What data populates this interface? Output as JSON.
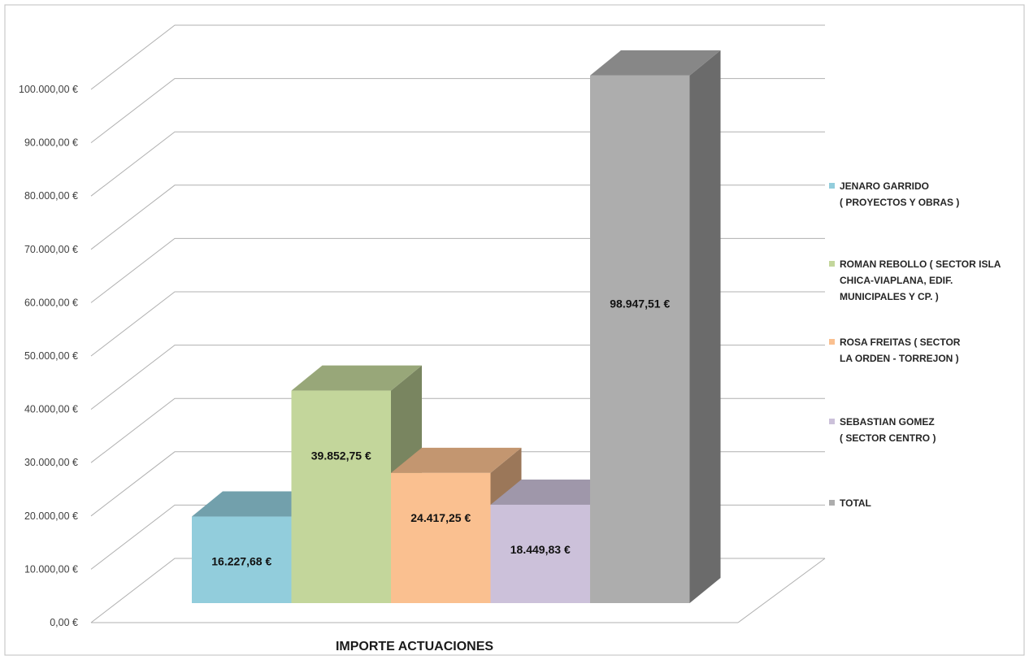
{
  "chart_data": {
    "type": "bar",
    "title": "",
    "xlabel": "IMPORTE ACTUACIONES",
    "ylabel": "",
    "ylim": [
      0,
      100000
    ],
    "yticks": [
      "0,00 €",
      "10.000,00 €",
      "20.000,00 €",
      "30.000,00 €",
      "40.000,00 €",
      "50.000,00 €",
      "60.000,00 €",
      "70.000,00 €",
      "80.000,00 €",
      "90.000,00 €",
      "100.000,00 €"
    ],
    "grid": true,
    "legend_position": "right",
    "categories": [
      "IMPORTE ACTUACIONES"
    ],
    "series": [
      {
        "name": "JENARO GARRIDO\n( PROYECTOS Y OBRAS )",
        "values": [
          16227.68
        ],
        "label": "16.227,68 €",
        "color": "#92CDDC"
      },
      {
        "name": "ROMAN REBOLLO ( SECTOR ISLA\nCHICA-VIAPLANA, EDIF.\nMUNICIPALES Y CP. )",
        "values": [
          39852.75
        ],
        "label": "39.852,75 €",
        "color": "#C3D69B"
      },
      {
        "name": "ROSA FREITAS ( SECTOR\nLA ORDEN - TORREJON )",
        "values": [
          24417.25
        ],
        "label": "24.417,25 €",
        "color": "#FAC090"
      },
      {
        "name": "SEBASTIAN GOMEZ\n( SECTOR CENTRO )",
        "values": [
          18449.83
        ],
        "label": "18.449,83 €",
        "color": "#CCC1DA"
      },
      {
        "name": "TOTAL",
        "values": [
          98947.51
        ],
        "label": "98.947,51 €",
        "color": "#ADADAD"
      }
    ]
  }
}
